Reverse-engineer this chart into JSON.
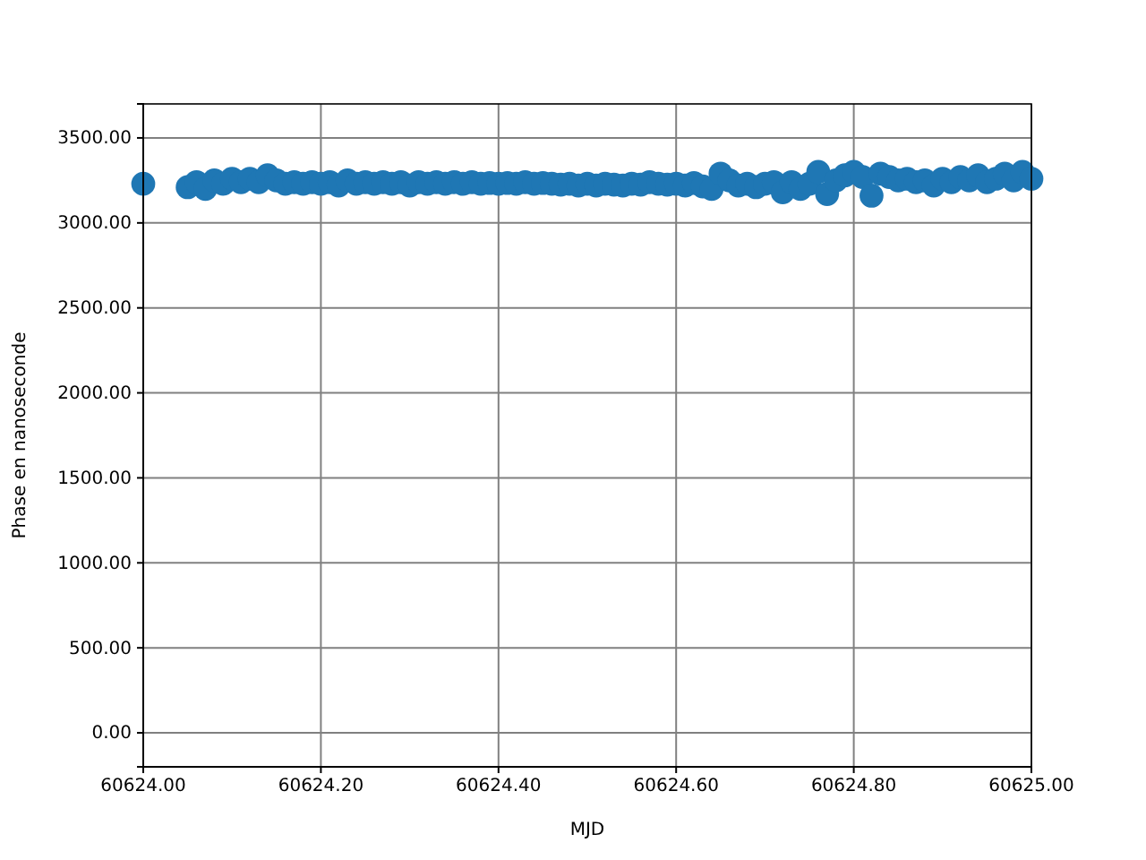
{
  "chart_data": {
    "type": "scatter",
    "xlabel": "MJD",
    "ylabel": "Phase en nanoseconde",
    "xlim": [
      60624.0,
      60625.0
    ],
    "xticks": [
      {
        "value": 60624.0,
        "label": "60624.00"
      },
      {
        "value": 60624.2,
        "label": "60624.20"
      },
      {
        "value": 60624.4,
        "label": "60624.40"
      },
      {
        "value": 60624.6,
        "label": "60624.60"
      },
      {
        "value": 60624.8,
        "label": "60624.80"
      },
      {
        "value": 60625.0,
        "label": "60625.00"
      }
    ],
    "ylim": [
      -200,
      3700
    ],
    "yticks": [
      {
        "value": 0,
        "label": "0.00"
      },
      {
        "value": 500,
        "label": "500.00"
      },
      {
        "value": 1000,
        "label": "1000.00"
      },
      {
        "value": 1500,
        "label": "1500.00"
      },
      {
        "value": 2000,
        "label": "2000.00"
      },
      {
        "value": 2500,
        "label": "2500.00"
      },
      {
        "value": 3000,
        "label": "3000.00"
      },
      {
        "value": 3500,
        "label": "3500.00"
      }
    ],
    "grid": true,
    "marker": "circle",
    "series": [
      {
        "color": "#1f77b4",
        "x": [
          60624.0,
          60624.05,
          60624.06,
          60624.07,
          60624.08,
          60624.09,
          60624.1,
          60624.11,
          60624.12,
          60624.13,
          60624.14,
          60624.15,
          60624.16,
          60624.17,
          60624.18,
          60624.19,
          60624.2,
          60624.21,
          60624.22,
          60624.23,
          60624.24,
          60624.25,
          60624.26,
          60624.27,
          60624.28,
          60624.29,
          60624.3,
          60624.31,
          60624.32,
          60624.33,
          60624.34,
          60624.35,
          60624.36,
          60624.37,
          60624.38,
          60624.39,
          60624.4,
          60624.41,
          60624.42,
          60624.43,
          60624.44,
          60624.45,
          60624.46,
          60624.47,
          60624.48,
          60624.49,
          60624.5,
          60624.51,
          60624.52,
          60624.53,
          60624.54,
          60624.55,
          60624.56,
          60624.57,
          60624.58,
          60624.59,
          60624.6,
          60624.61,
          60624.62,
          60624.63,
          60624.64,
          60624.65,
          60624.66,
          60624.67,
          60624.68,
          60624.69,
          60624.7,
          60624.71,
          60624.72,
          60624.73,
          60624.74,
          60624.75,
          60624.76,
          60624.77,
          60624.78,
          60624.79,
          60624.8,
          60624.81,
          60624.82,
          60624.83,
          60624.84,
          60624.85,
          60624.86,
          60624.87,
          60624.88,
          60624.89,
          60624.9,
          60624.91,
          60624.92,
          60624.93,
          60624.94,
          60624.95,
          60624.96,
          60624.97,
          60624.98,
          60624.99,
          60625.0
        ],
        "values": [
          3230,
          3210,
          3240,
          3200,
          3250,
          3230,
          3260,
          3240,
          3260,
          3240,
          3280,
          3250,
          3230,
          3240,
          3230,
          3240,
          3230,
          3240,
          3220,
          3250,
          3230,
          3240,
          3230,
          3240,
          3230,
          3240,
          3220,
          3240,
          3230,
          3240,
          3230,
          3240,
          3230,
          3240,
          3230,
          3235,
          3230,
          3235,
          3230,
          3240,
          3230,
          3235,
          3230,
          3225,
          3230,
          3220,
          3230,
          3220,
          3230,
          3225,
          3220,
          3230,
          3225,
          3240,
          3230,
          3225,
          3230,
          3220,
          3235,
          3215,
          3200,
          3290,
          3250,
          3220,
          3230,
          3210,
          3230,
          3240,
          3180,
          3240,
          3200,
          3230,
          3300,
          3170,
          3250,
          3280,
          3300,
          3270,
          3160,
          3290,
          3270,
          3250,
          3260,
          3240,
          3250,
          3220,
          3260,
          3240,
          3270,
          3250,
          3280,
          3240,
          3260,
          3290,
          3250,
          3300,
          3260
        ]
      }
    ]
  }
}
